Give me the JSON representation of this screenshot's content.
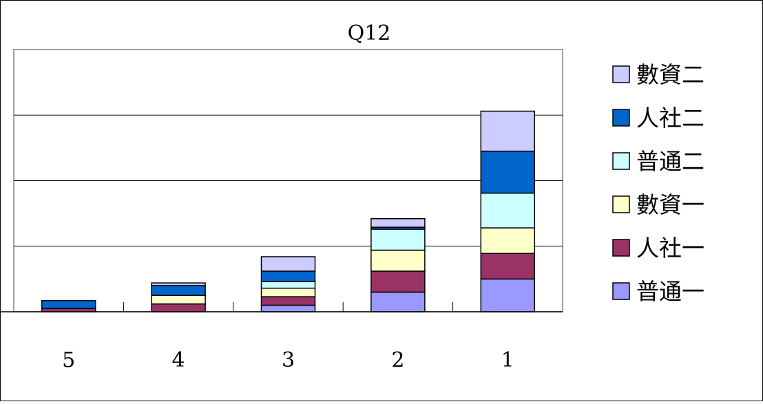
{
  "chart_data": {
    "type": "bar",
    "stacked": true,
    "title": "Q12",
    "xlabel": "",
    "ylabel": "",
    "categories": [
      "5",
      "4",
      "3",
      "2",
      "1"
    ],
    "ylim": [
      0,
      40
    ],
    "grid": true,
    "legend_position": "right",
    "series": [
      {
        "name": "普通一",
        "color": "#9999ff",
        "values": [
          0,
          0,
          1,
          3,
          5
        ]
      },
      {
        "name": "人社一",
        "color": "#993366",
        "values": [
          0.5,
          1.2,
          1.3,
          3.2,
          3.9
        ]
      },
      {
        "name": "數資一",
        "color": "#ffffcc",
        "values": [
          0,
          1.3,
          1.3,
          3.2,
          3.9
        ]
      },
      {
        "name": "普通二",
        "color": "#ccffff",
        "values": [
          0,
          0,
          1,
          3.2,
          5.3
        ]
      },
      {
        "name": "人社二",
        "color": "#0066cc",
        "values": [
          1.2,
          1.5,
          1.6,
          0.3,
          6.4
        ]
      },
      {
        "name": "數資二",
        "color": "#ccccff",
        "values": [
          0,
          0.4,
          2.2,
          1.3,
          6.1
        ]
      }
    ]
  }
}
